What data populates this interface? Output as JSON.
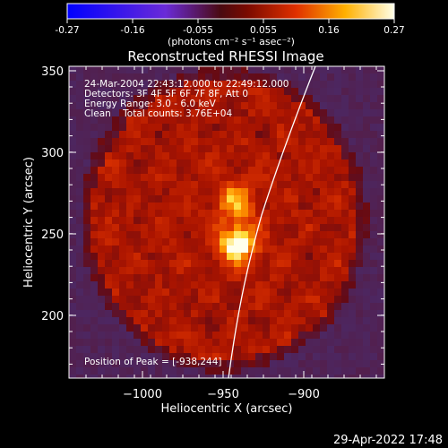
{
  "colorbar": {
    "tick_labels": [
      "-0.27",
      "-0.16",
      "-0.055",
      "0.055",
      "0.16",
      "0.27"
    ],
    "unit_label": "(photons cm⁻² s⁻¹ asec⁻²)",
    "range": [
      -0.27,
      0.27
    ]
  },
  "plot": {
    "title": "Reconstructed RHESSI Image",
    "xlabel": "Heliocentric X (arcsec)",
    "ylabel": "Heliocentric Y (arcsec)",
    "x_ticks": [
      "−1000",
      "−950",
      "−900"
    ],
    "y_ticks": [
      "350",
      "300",
      "250",
      "200"
    ],
    "x_range": [
      -1045,
      -905
    ],
    "y_range": [
      155,
      353
    ],
    "info_lines": [
      "24-Mar-2004 22:43:12.000 to 22:49:12.000",
      "Detectors: 3F 4F 5F 6F 7F 8F, Att 0",
      "Energy Range: 3.0 - 6.0 keV",
      "Clean    Total counts: 3.76E+04"
    ],
    "peak_label": "Position of Peak = [-938,244]",
    "peak": [
      -938,
      244
    ]
  },
  "footer": {
    "timestamp": "29-Apr-2022 17:48"
  }
}
